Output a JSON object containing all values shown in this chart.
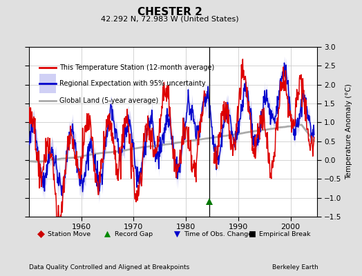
{
  "title": "CHESTER 2",
  "subtitle": "42.292 N, 72.983 W (United States)",
  "ylabel": "Temperature Anomaly (°C)",
  "xlabel_left": "Data Quality Controlled and Aligned at Breakpoints",
  "xlabel_right": "Berkeley Earth",
  "xlim": [
    1950,
    2005
  ],
  "ylim": [
    -1.5,
    3.0
  ],
  "yticks": [
    -1.5,
    -1.0,
    -0.5,
    0.0,
    0.5,
    1.0,
    1.5,
    2.0,
    2.5,
    3.0
  ],
  "xticks": [
    1960,
    1970,
    1980,
    1990,
    2000
  ],
  "bg_color": "#e0e0e0",
  "plot_bg_color": "#ffffff",
  "grid_color": "#cccccc",
  "red_color": "#dd0000",
  "blue_color": "#0000cc",
  "blue_fill_color": "#aaaaee",
  "gray_color": "#aaaaaa",
  "obs_change_year": 1984.5,
  "obs_change_marker_y": -1.1,
  "legend_entries": [
    "This Temperature Station (12-month average)",
    "Regional Expectation with 95% uncertainty",
    "Global Land (5-year average)"
  ],
  "marker_legend": [
    {
      "label": "Station Move",
      "color": "#cc0000",
      "marker": "D"
    },
    {
      "label": "Record Gap",
      "color": "#008800",
      "marker": "^"
    },
    {
      "label": "Time of Obs. Change",
      "color": "#0000cc",
      "marker": "v"
    },
    {
      "label": "Empirical Break",
      "color": "#000000",
      "marker": "s"
    }
  ]
}
